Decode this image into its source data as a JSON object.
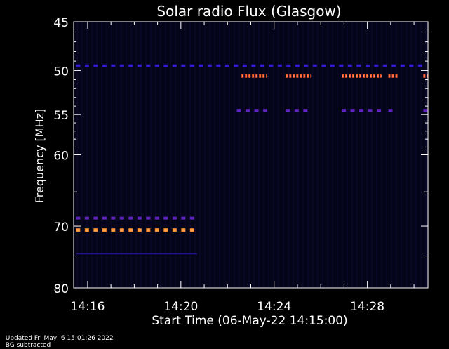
{
  "chart_data": {
    "type": "heatmap",
    "title": "Solar radio Flux (Glasgow)",
    "xlabel": "Start Time (06-May-22 14:15:00)",
    "ylabel": "Frequency [MHz]",
    "x_unit": "minutes after 14:00 UT",
    "xlim": [
      15.4,
      30.6
    ],
    "ylim": [
      45,
      80
    ],
    "yscale": "log",
    "y_reversed": true,
    "xticks": [
      {
        "value": 16,
        "label": "14:16"
      },
      {
        "value": 20,
        "label": "14:20"
      },
      {
        "value": 24,
        "label": "14:24"
      },
      {
        "value": 28,
        "label": "14:28"
      }
    ],
    "yticks": [
      {
        "value": 45,
        "label": "45"
      },
      {
        "value": 50,
        "label": "50"
      },
      {
        "value": 55,
        "label": "55"
      },
      {
        "value": 60,
        "label": "60"
      },
      {
        "value": 70,
        "label": "70"
      },
      {
        "value": 80,
        "label": "80"
      }
    ],
    "background_color": "#05051a",
    "frame_color": "#ffffff",
    "color_scale": [
      "#000000",
      "#1a0f6e",
      "#3a1ee8",
      "#ff3a2a",
      "#ff8c28"
    ],
    "emission_bands": [
      {
        "freq_mhz": 49.5,
        "t_start": 15.5,
        "t_end": 30.5,
        "intensity": 0.45,
        "style": "dash"
      },
      {
        "freq_mhz": 50.6,
        "t_start": 22.6,
        "t_end": 23.7,
        "intensity": 0.85,
        "style": "dash"
      },
      {
        "freq_mhz": 50.6,
        "t_start": 24.5,
        "t_end": 25.6,
        "intensity": 0.85,
        "style": "dash"
      },
      {
        "freq_mhz": 50.6,
        "t_start": 26.9,
        "t_end": 28.6,
        "intensity": 0.85,
        "style": "dash"
      },
      {
        "freq_mhz": 50.6,
        "t_start": 28.9,
        "t_end": 29.3,
        "intensity": 0.85,
        "style": "dash"
      },
      {
        "freq_mhz": 50.6,
        "t_start": 30.4,
        "t_end": 30.6,
        "intensity": 0.85,
        "style": "dash"
      },
      {
        "freq_mhz": 54.5,
        "t_start": 22.4,
        "t_end": 23.7,
        "intensity": 0.55,
        "style": "dash"
      },
      {
        "freq_mhz": 54.5,
        "t_start": 24.5,
        "t_end": 25.6,
        "intensity": 0.55,
        "style": "dash"
      },
      {
        "freq_mhz": 54.5,
        "t_start": 26.9,
        "t_end": 28.6,
        "intensity": 0.55,
        "style": "dash"
      },
      {
        "freq_mhz": 54.5,
        "t_start": 28.9,
        "t_end": 29.3,
        "intensity": 0.55,
        "style": "dash"
      },
      {
        "freq_mhz": 54.5,
        "t_start": 30.4,
        "t_end": 30.6,
        "intensity": 0.55,
        "style": "dash"
      },
      {
        "freq_mhz": 68.8,
        "t_start": 15.5,
        "t_end": 20.7,
        "intensity": 0.55,
        "style": "dash"
      },
      {
        "freq_mhz": 70.6,
        "t_start": 15.5,
        "t_end": 20.7,
        "intensity": 1.0,
        "style": "dash"
      },
      {
        "freq_mhz": 74.3,
        "t_start": 15.5,
        "t_end": 20.7,
        "intensity": 0.3,
        "style": "faint"
      }
    ]
  },
  "footer": {
    "updated": "Updated Fri May  6 15:01:26 2022",
    "note": "BG subtracted"
  }
}
